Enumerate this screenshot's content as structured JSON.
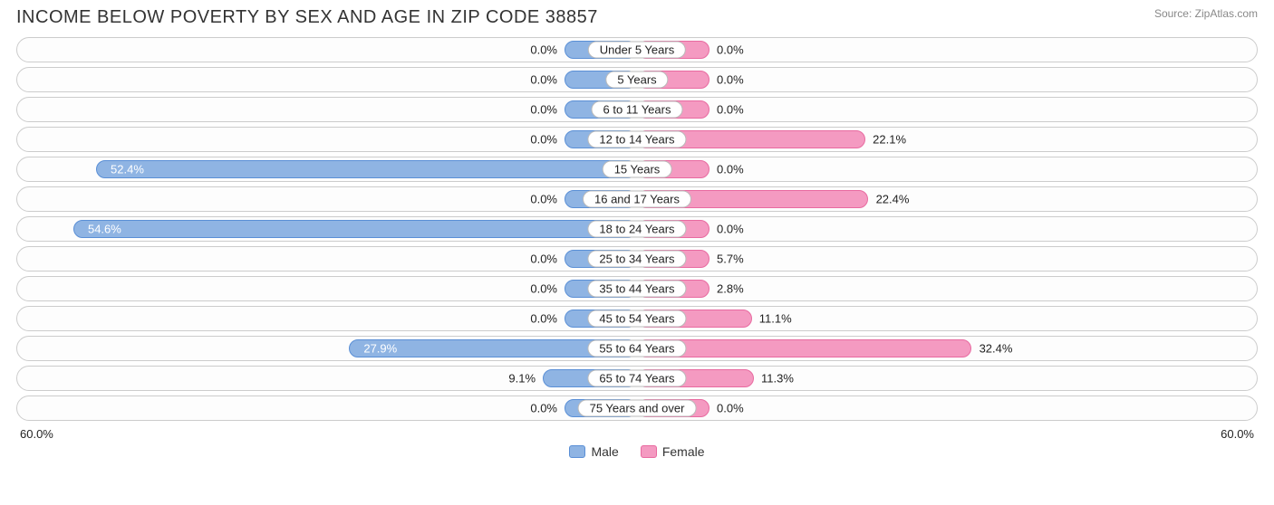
{
  "title": "INCOME BELOW POVERTY BY SEX AND AGE IN ZIP CODE 38857",
  "source": "Source: ZipAtlas.com",
  "chart": {
    "type": "diverging-bar",
    "axis_max": 60.0,
    "axis_label_left": "60.0%",
    "axis_label_right": "60.0%",
    "min_bar_pct": 7.0,
    "colors": {
      "male_fill": "#8fb4e3",
      "male_border": "#5a8fd6",
      "female_fill": "#f49ac1",
      "female_border": "#e86aa0",
      "row_border": "#cccccc",
      "background": "#ffffff",
      "text": "#222222"
    },
    "legend": [
      {
        "label": "Male",
        "fill": "#8fb4e3",
        "border": "#5a8fd6"
      },
      {
        "label": "Female",
        "fill": "#f49ac1",
        "border": "#e86aa0"
      }
    ],
    "rows": [
      {
        "category": "Under 5 Years",
        "male": 0.0,
        "female": 0.0,
        "male_label": "0.0%",
        "female_label": "0.0%"
      },
      {
        "category": "5 Years",
        "male": 0.0,
        "female": 0.0,
        "male_label": "0.0%",
        "female_label": "0.0%"
      },
      {
        "category": "6 to 11 Years",
        "male": 0.0,
        "female": 0.0,
        "male_label": "0.0%",
        "female_label": "0.0%"
      },
      {
        "category": "12 to 14 Years",
        "male": 0.0,
        "female": 22.1,
        "male_label": "0.0%",
        "female_label": "22.1%"
      },
      {
        "category": "15 Years",
        "male": 52.4,
        "female": 0.0,
        "male_label": "52.4%",
        "female_label": "0.0%"
      },
      {
        "category": "16 and 17 Years",
        "male": 0.0,
        "female": 22.4,
        "male_label": "0.0%",
        "female_label": "22.4%"
      },
      {
        "category": "18 to 24 Years",
        "male": 54.6,
        "female": 0.0,
        "male_label": "54.6%",
        "female_label": "0.0%"
      },
      {
        "category": "25 to 34 Years",
        "male": 0.0,
        "female": 5.7,
        "male_label": "0.0%",
        "female_label": "5.7%"
      },
      {
        "category": "35 to 44 Years",
        "male": 0.0,
        "female": 2.8,
        "male_label": "0.0%",
        "female_label": "2.8%"
      },
      {
        "category": "45 to 54 Years",
        "male": 0.0,
        "female": 11.1,
        "male_label": "0.0%",
        "female_label": "11.1%"
      },
      {
        "category": "55 to 64 Years",
        "male": 27.9,
        "female": 32.4,
        "male_label": "27.9%",
        "female_label": "32.4%"
      },
      {
        "category": "65 to 74 Years",
        "male": 9.1,
        "female": 11.3,
        "male_label": "9.1%",
        "female_label": "11.3%"
      },
      {
        "category": "75 Years and over",
        "male": 0.0,
        "female": 0.0,
        "male_label": "0.0%",
        "female_label": "0.0%"
      }
    ]
  }
}
